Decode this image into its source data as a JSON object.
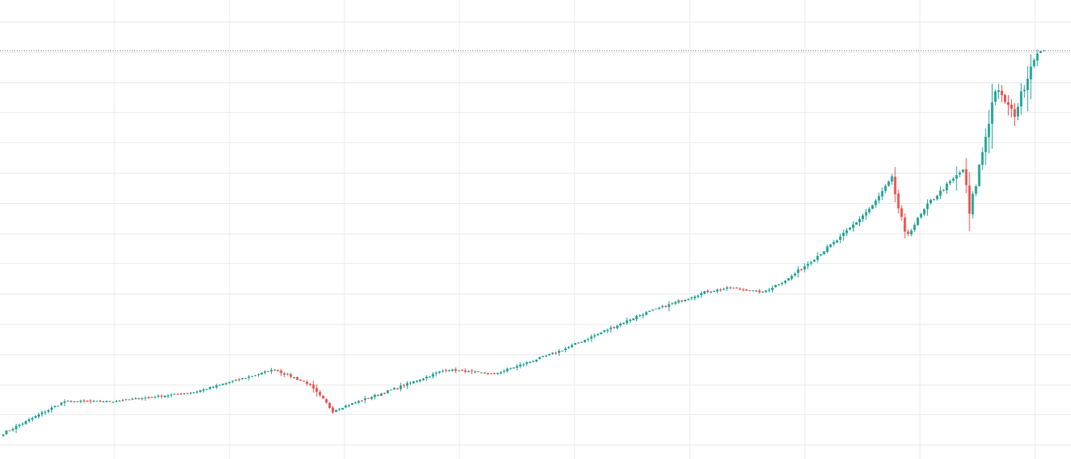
{
  "chart_data": {
    "type": "candlestick",
    "title": "",
    "xlabel": "",
    "ylabel": "",
    "grid": true,
    "legend": "none",
    "ylim": [
      0,
      100
    ],
    "last_value": 90.2,
    "colors": {
      "up": "#26a69a",
      "down": "#ef5350",
      "grid": "#ebebeb",
      "last_line": "#8a8a8a"
    },
    "segments": [
      {
        "n": 20,
        "to": 13
      },
      {
        "n": 15,
        "to": 13
      },
      {
        "n": 25,
        "to": 15
      },
      {
        "n": 25,
        "to": 20
      },
      {
        "n": 10,
        "to": 17
      },
      {
        "n": 8,
        "to": 11
      },
      {
        "n": 20,
        "to": 16
      },
      {
        "n": 15,
        "to": 20
      },
      {
        "n": 15,
        "to": 19
      },
      {
        "n": 20,
        "to": 24
      },
      {
        "n": 25,
        "to": 32
      },
      {
        "n": 20,
        "to": 37
      },
      {
        "n": 8,
        "to": 38
      },
      {
        "n": 10,
        "to": 37
      },
      {
        "n": 8,
        "to": 40
      },
      {
        "n": 16,
        "to": 49
      },
      {
        "n": 10,
        "to": 56
      },
      {
        "n": 6,
        "to": 62
      },
      {
        "n": 4,
        "to": 49
      },
      {
        "n": 8,
        "to": 57
      },
      {
        "n": 10,
        "to": 64
      },
      {
        "n": 2,
        "to": 54
      },
      {
        "n": 8,
        "to": 82
      },
      {
        "n": 6,
        "to": 76
      },
      {
        "n": 6,
        "to": 89
      },
      {
        "n": 3,
        "to": 90.2
      }
    ]
  }
}
